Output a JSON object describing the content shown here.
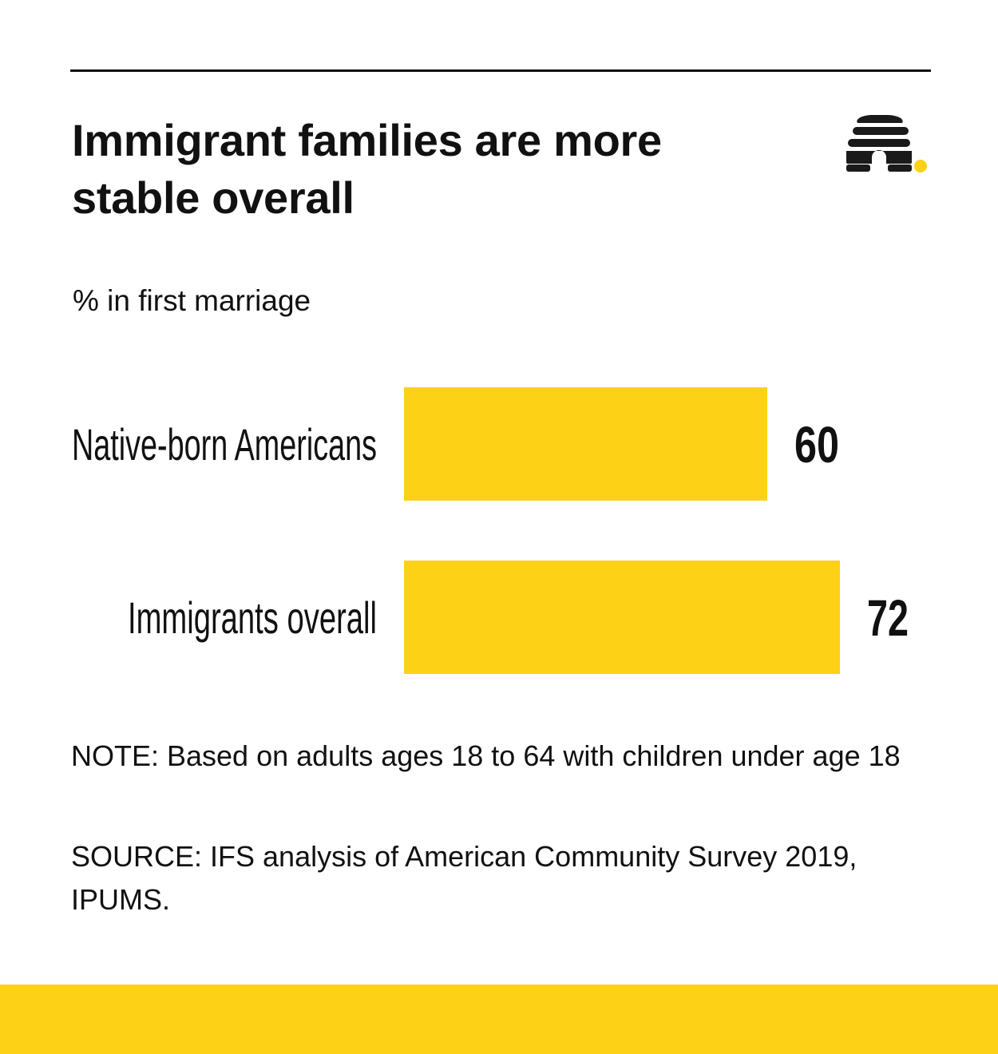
{
  "title": "Immigrant families are more stable overall",
  "subtitle": "% in first marriage",
  "note": "NOTE: Based on adults ages 18 to 64 with children under age 18",
  "source": "SOURCE: IFS analysis of American Community Survey 2019, IPUMS.",
  "colors": {
    "accent": "#FDD116",
    "text": "#111111",
    "logo_dark": "#1a1a1a"
  },
  "logo": {
    "icon": "beehive-icon"
  },
  "chart_data": {
    "type": "bar",
    "orientation": "horizontal",
    "title": "Immigrant families are more stable overall",
    "subtitle": "% in first marriage",
    "categories": [
      "Native-born Americans",
      "Immigrants overall"
    ],
    "values": [
      60,
      72
    ],
    "xlim": [
      0,
      80
    ],
    "xlabel": "",
    "ylabel": "",
    "grid": false,
    "legend": "none"
  }
}
